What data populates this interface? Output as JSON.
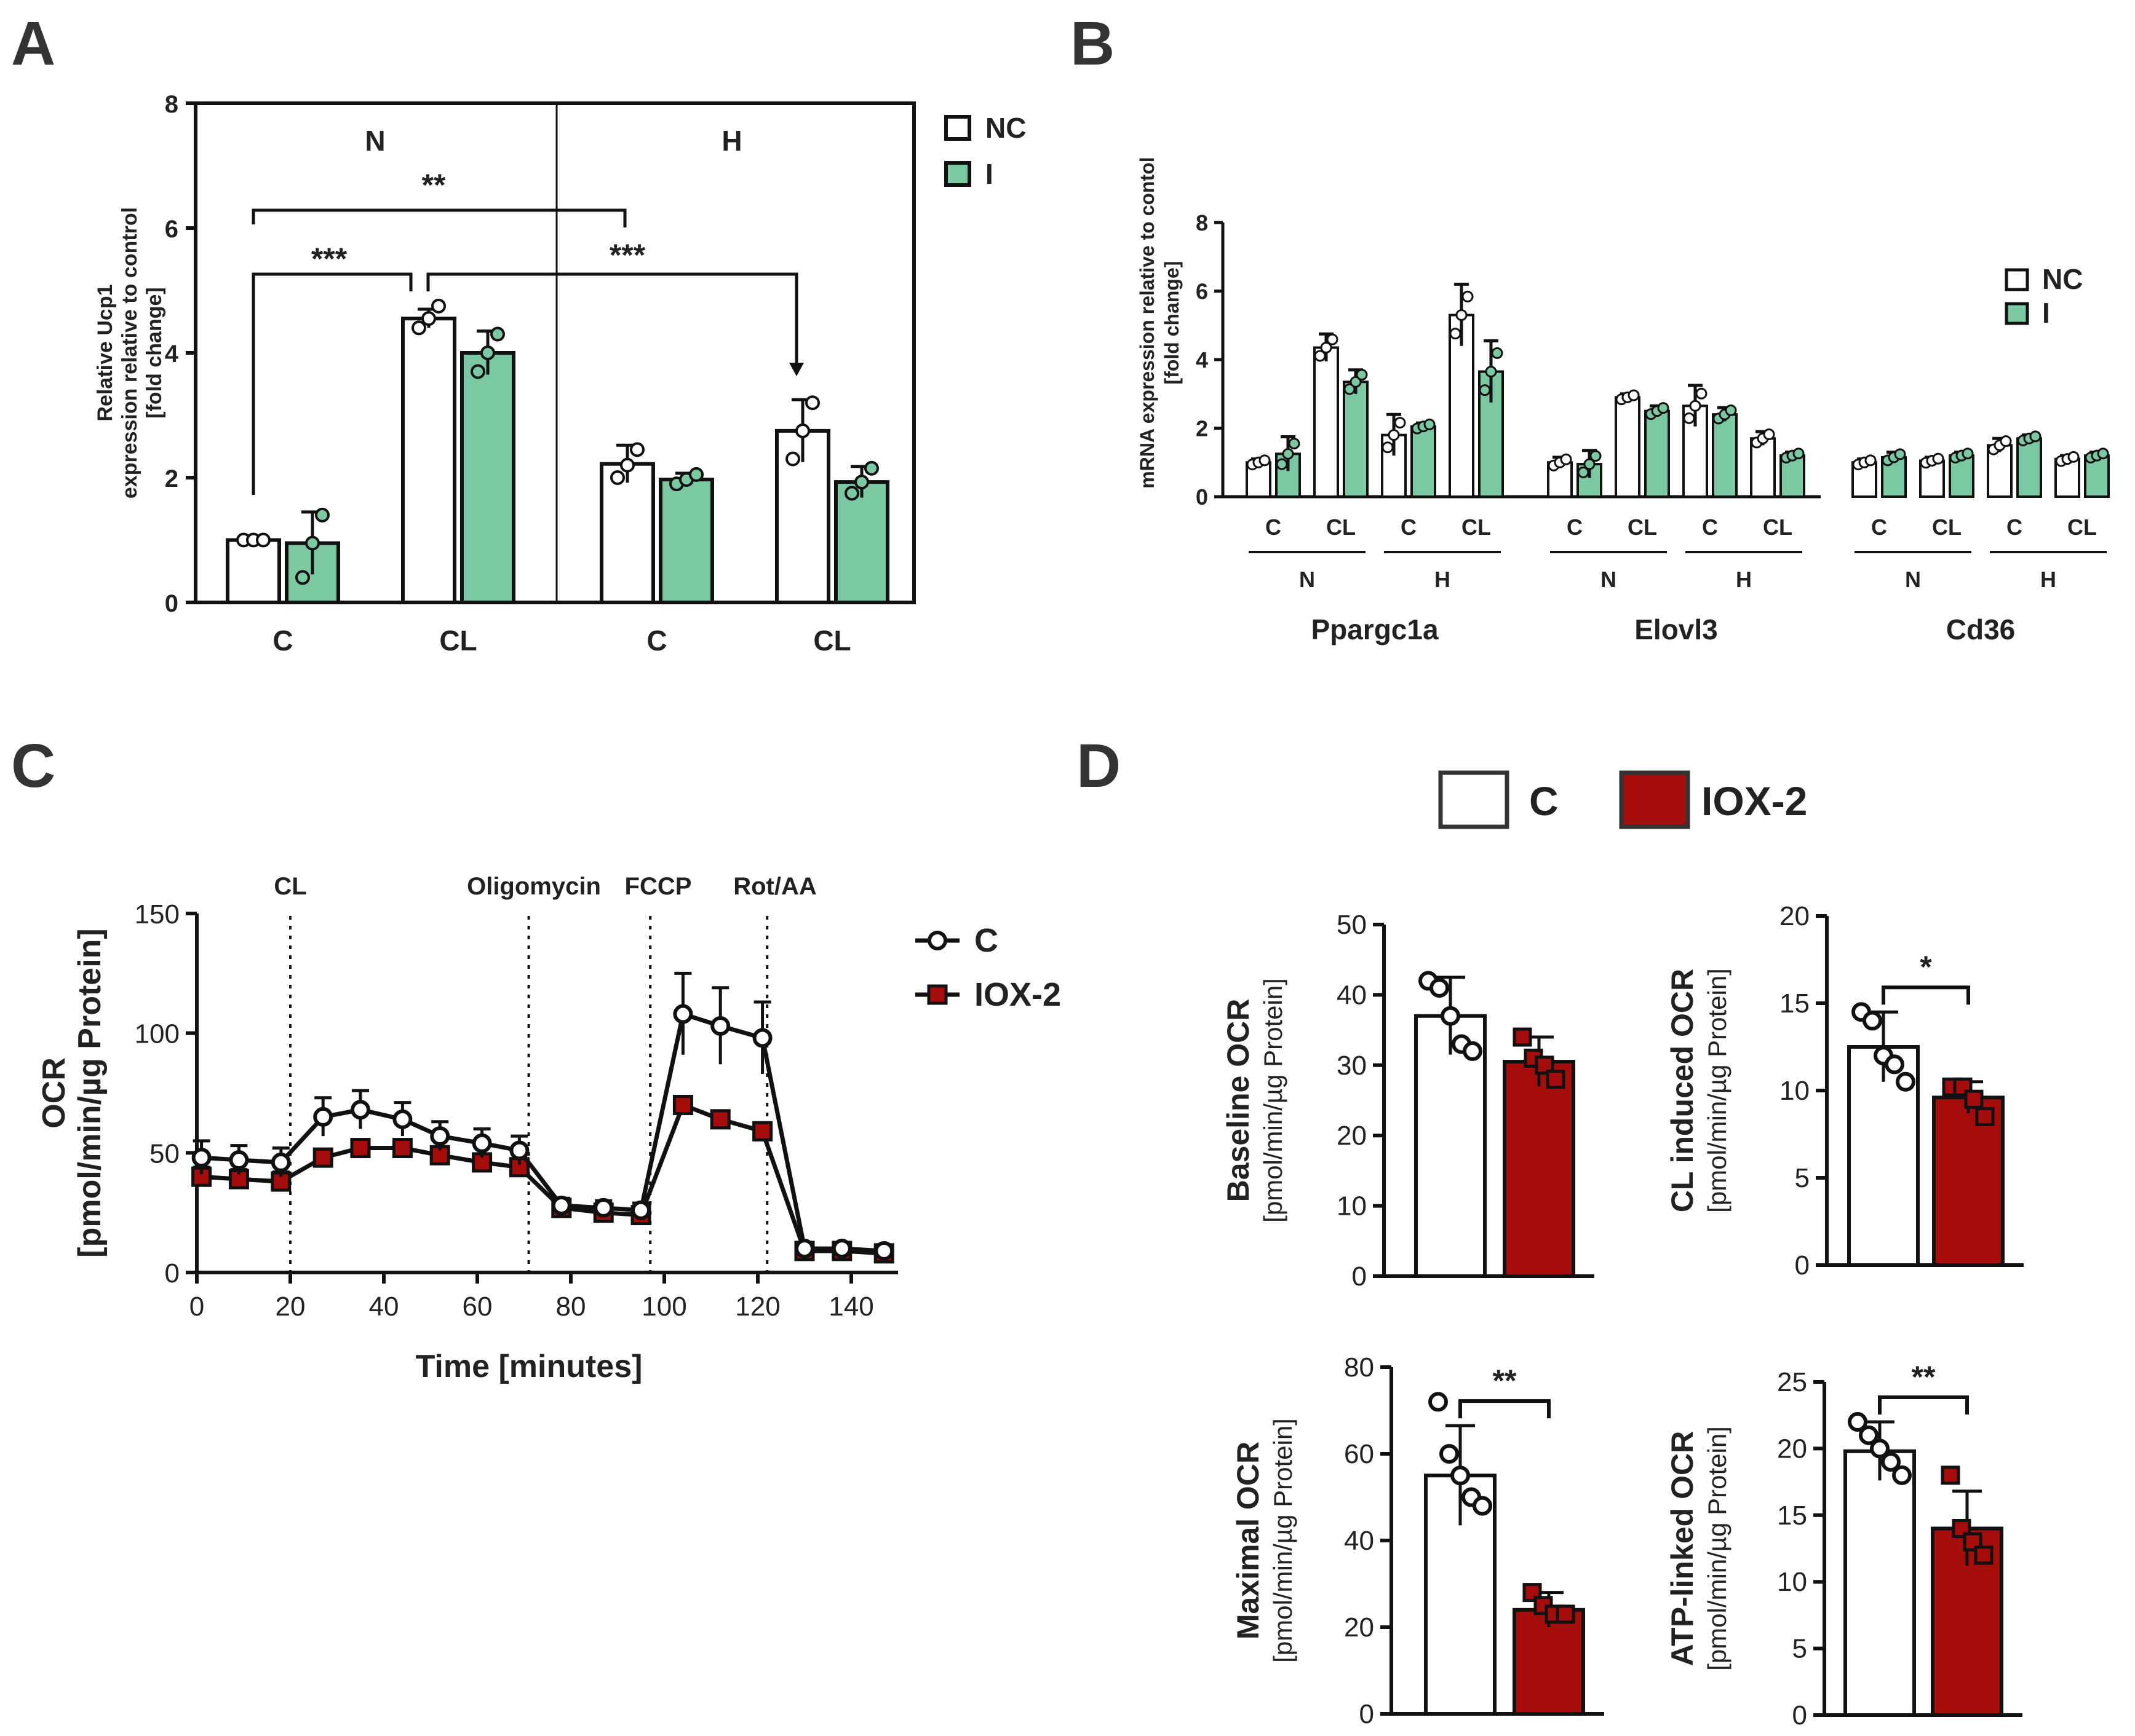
{
  "panel_labels": [
    "A",
    "B",
    "C",
    "D"
  ],
  "colors": {
    "nc": "#ffffff",
    "i": "#7cc8a2",
    "c": "#ffffff",
    "iox2": "#a50d0d",
    "line": "#111111",
    "dot_c": "#ffffff"
  },
  "chart_data": [
    {
      "panel": "A",
      "type": "bar",
      "ylabel_lines": [
        "Relative Ucp1",
        "expression relative to control",
        "[fold change]"
      ],
      "ylim": [
        0,
        8
      ],
      "yticks": [
        "0",
        "2",
        "4",
        "6",
        "8"
      ],
      "categories": [
        "C",
        "CL",
        "C",
        "CL"
      ],
      "groups": [
        "N",
        "H"
      ],
      "legend": [
        "NC",
        "I"
      ],
      "series": [
        {
          "name": "NC",
          "values": [
            1.0,
            4.55,
            2.22,
            2.75
          ],
          "errors": [
            0.05,
            0.15,
            0.3,
            0.5
          ],
          "points": [
            [
              1.0,
              1.0,
              1.0
            ],
            [
              4.4,
              4.55,
              4.75
            ],
            [
              2.0,
              2.2,
              2.45
            ],
            [
              2.3,
              2.75,
              3.2
            ]
          ]
        },
        {
          "name": "I",
          "values": [
            0.95,
            4.0,
            1.97,
            1.93
          ],
          "errors": [
            0.5,
            0.35,
            0.1,
            0.25
          ],
          "points": [
            [
              0.4,
              0.95,
              1.4
            ],
            [
              3.7,
              4.0,
              4.3
            ],
            [
              1.9,
              1.97,
              2.05
            ],
            [
              1.75,
              1.93,
              2.15
            ]
          ]
        }
      ],
      "annotations": [
        "***",
        "**",
        "***"
      ]
    },
    {
      "panel": "B",
      "type": "bar",
      "ylabel_lines": [
        "mRNA expression relative to contol",
        "[fold change]"
      ],
      "ylim": [
        0,
        8
      ],
      "yticks": [
        "0",
        "2",
        "4",
        "6",
        "8"
      ],
      "genes": [
        "Ppargc1a",
        "Elovl3",
        "Cd36"
      ],
      "conditions": [
        "C",
        "CL",
        "C",
        "CL"
      ],
      "groups": [
        "N",
        "H"
      ],
      "legend": [
        "NC",
        "I"
      ],
      "series": [
        {
          "name": "NC",
          "values": [
            1.0,
            4.35,
            1.8,
            5.3,
            1.0,
            2.9,
            2.65,
            1.7,
            1.0,
            1.05,
            1.5,
            1.1
          ],
          "errors": [
            0.1,
            0.4,
            0.6,
            0.9,
            0.15,
            0.1,
            0.6,
            0.2,
            0.1,
            0.1,
            0.2,
            0.1
          ]
        },
        {
          "name": "I",
          "values": [
            1.25,
            3.35,
            2.05,
            3.65,
            0.95,
            2.5,
            2.4,
            1.2,
            1.15,
            1.2,
            1.7,
            1.2
          ],
          "errors": [
            0.5,
            0.35,
            0.1,
            0.9,
            0.4,
            0.15,
            0.2,
            0.1,
            0.15,
            0.1,
            0.1,
            0.1
          ]
        }
      ]
    },
    {
      "panel": "C",
      "type": "line",
      "ylabel_lines": [
        "OCR",
        "[pmol/min/µg Protein]"
      ],
      "xlabel": "Time [minutes]",
      "xlim": [
        0,
        150
      ],
      "ylim": [
        0,
        150
      ],
      "xticks": [
        "0",
        "20",
        "40",
        "60",
        "80",
        "100",
        "120",
        "140"
      ],
      "yticks": [
        "0",
        "50",
        "100",
        "150"
      ],
      "injections": [
        {
          "label": "CL",
          "time": 20
        },
        {
          "label": "Oligomycin",
          "time": 71
        },
        {
          "label": "FCCP",
          "time": 97
        },
        {
          "label": "Rot/AA",
          "time": 122
        }
      ],
      "x": [
        1,
        9,
        18,
        27,
        35,
        44,
        52,
        61,
        69,
        78,
        87,
        95,
        104,
        112,
        121,
        130,
        138,
        147
      ],
      "series": [
        {
          "name": "C",
          "values": [
            48,
            47,
            46,
            65,
            68,
            64,
            57,
            54,
            51,
            28,
            27,
            26,
            108,
            103,
            98,
            10,
            10,
            9
          ],
          "errors": [
            7,
            6,
            6,
            8,
            8,
            7,
            6,
            6,
            6,
            3,
            3,
            3,
            17,
            16,
            15,
            2,
            2,
            2
          ]
        },
        {
          "name": "IOX-2",
          "values": [
            40,
            39,
            38,
            48,
            52,
            52,
            49,
            46,
            44,
            27,
            25,
            24,
            70,
            64,
            59,
            9,
            9,
            8
          ],
          "errors": [
            4,
            4,
            4,
            3,
            3,
            3,
            3,
            3,
            3,
            2,
            2,
            2,
            3,
            3,
            3,
            1,
            1,
            1
          ]
        }
      ]
    },
    {
      "panel": "D",
      "type": "bar",
      "legend": [
        "C",
        "IOX-2"
      ],
      "subplots": [
        {
          "title": "Baseline OCR",
          "ylabel2": "[pmol/min/µg Protein]",
          "ylim": [
            0,
            50
          ],
          "yticks": [
            "0",
            "10",
            "20",
            "30",
            "40",
            "50"
          ],
          "categories": [
            "C",
            "IOX-2"
          ],
          "values": [
            37,
            30.5
          ],
          "errors": [
            5.5,
            3.5
          ],
          "points": [
            [
              42,
              41,
              37,
              33,
              32
            ],
            [
              34,
              31,
              30,
              28
            ]
          ],
          "sig": ""
        },
        {
          "title": "CL induced OCR",
          "ylabel2": "[pmol/min/µg Protein]",
          "ylim": [
            0,
            20
          ],
          "yticks": [
            "0",
            "5",
            "10",
            "15",
            "20"
          ],
          "categories": [
            "C",
            "IOX-2"
          ],
          "values": [
            12.5,
            9.6
          ],
          "errors": [
            2.0,
            0.9
          ],
          "points": [
            [
              14.5,
              14.0,
              12.0,
              11.5,
              10.5
            ],
            [
              10.2,
              10.2,
              9.5,
              8.5
            ]
          ],
          "sig": "*"
        },
        {
          "title": "Maximal OCR",
          "ylabel2": "[pmol/min/µg Protein]",
          "ylim": [
            0,
            80
          ],
          "yticks": [
            "0",
            "20",
            "40",
            "60",
            "80"
          ],
          "categories": [
            "C",
            "IOX-2"
          ],
          "values": [
            55,
            24
          ],
          "errors": [
            11.5,
            4
          ],
          "points": [
            [
              72,
              60,
              55,
              50,
              48
            ],
            [
              28,
              25,
              23,
              23
            ]
          ],
          "sig": "**"
        },
        {
          "title": "ATP-linked OCR",
          "ylabel2": "[pmol/min/µg Protein]",
          "ylim": [
            0,
            25
          ],
          "yticks": [
            "0",
            "5",
            "10",
            "15",
            "20",
            "25"
          ],
          "categories": [
            "C",
            "IOX-2"
          ],
          "values": [
            19.8,
            14
          ],
          "errors": [
            2.2,
            2.8
          ],
          "points": [
            [
              22,
              21,
              20,
              19,
              18
            ],
            [
              18,
              14,
              13,
              12
            ]
          ],
          "sig": "**"
        }
      ]
    }
  ]
}
